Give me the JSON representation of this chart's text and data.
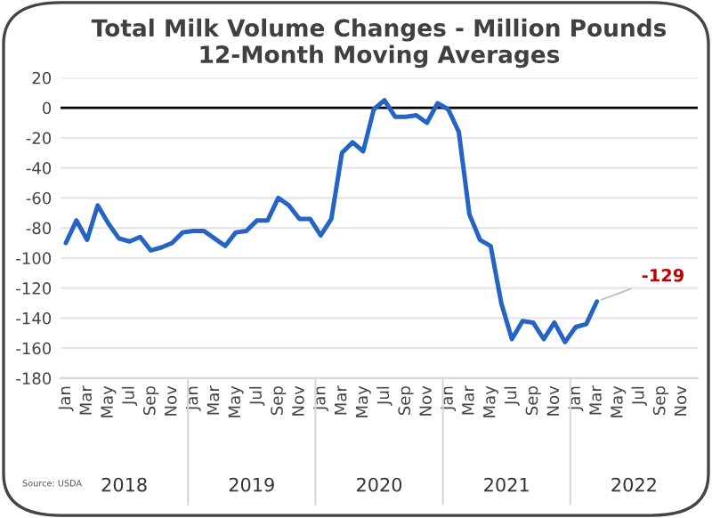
{
  "chart_data": {
    "type": "line",
    "title": "Total Milk Volume Changes - Million Pounds\n12-Month Moving Averages",
    "categories": [
      "Jan",
      null,
      "Mar",
      null,
      "May",
      null,
      "Jul",
      null,
      "Sep",
      null,
      "Nov",
      null,
      "Jan",
      null,
      "Mar",
      null,
      "May",
      null,
      "Jul",
      null,
      "Sep",
      null,
      "Nov",
      null,
      "Jan",
      null,
      "Mar",
      null,
      "May",
      null,
      "Jul",
      null,
      "Sep",
      null,
      "Nov",
      null,
      "Jan",
      null,
      "Mar",
      null,
      "May",
      null,
      "Jul",
      null,
      "Sep",
      null,
      "Nov",
      null,
      "Jan",
      null,
      "Mar",
      null,
      "May",
      null,
      "Jul",
      null,
      "Sep",
      null,
      "Nov",
      null
    ],
    "series": [
      {
        "color": "#2563c4",
        "values": [
          -90,
          -75,
          -88,
          -65,
          -77,
          -87,
          -89,
          -86,
          -95,
          -93,
          -90,
          -83,
          -82,
          -82,
          -87,
          -92,
          -83,
          -82,
          -75,
          -75,
          -60,
          -65,
          -74,
          -74,
          -85,
          -74,
          -30,
          -23,
          -29,
          -1,
          5,
          -6,
          -6,
          -5,
          -10,
          3,
          -1,
          -16,
          -71,
          -88,
          -92,
          -130,
          -154,
          -142,
          -143,
          -154,
          -143,
          -156,
          -146,
          -144,
          -129,
          null,
          null,
          null,
          null,
          null,
          null,
          null,
          null,
          null
        ],
        "value_labels": [
          null,
          null,
          null,
          null,
          null,
          null,
          null,
          null,
          null,
          null,
          null,
          null,
          null,
          null,
          null,
          null,
          null,
          null,
          null,
          null,
          null,
          null,
          null,
          null,
          null,
          null,
          null,
          null,
          null,
          null,
          null,
          null,
          null,
          null,
          null,
          null,
          null,
          null,
          null,
          null,
          null,
          null,
          null,
          null,
          null,
          null,
          null,
          null,
          null,
          null,
          "-129",
          null,
          null,
          null,
          null,
          null,
          null,
          null,
          null,
          null
        ]
      }
    ],
    "ylim": [
      -180,
      20
    ],
    "yticks": [
      -180,
      -160,
      -140,
      -120,
      -100,
      -80,
      -60,
      -40,
      -20,
      0,
      20
    ],
    "grid": "y",
    "ref_lines": [
      {
        "axis": "y",
        "value": 0,
        "color": "#000000"
      }
    ],
    "annotations": [
      "Source: USDA",
      "2018",
      "2019",
      "2020",
      "2021",
      "2022"
    ]
  }
}
